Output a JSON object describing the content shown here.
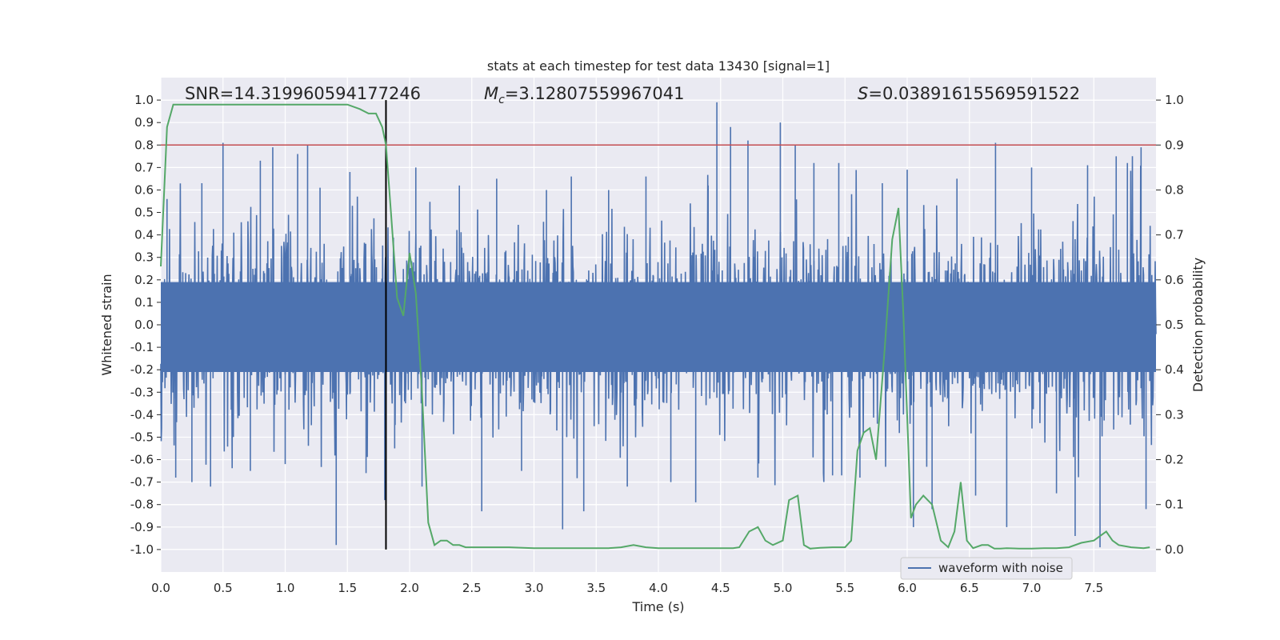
{
  "chart_data": {
    "type": "line",
    "title": "stats at each timestep for test data 13430 [signal=1]",
    "xlabel": "Time (s)",
    "ylabel": "Whitened strain",
    "ylabel_right": "Detection probability",
    "xlim": [
      0.0,
      8.0
    ],
    "ylim": [
      -1.1,
      1.1
    ],
    "ylim_right": [
      -0.05,
      1.05
    ],
    "x_ticks": [
      "0.0",
      "0.5",
      "1.0",
      "1.5",
      "2.0",
      "2.5",
      "3.0",
      "3.5",
      "4.0",
      "4.5",
      "5.0",
      "5.5",
      "6.0",
      "6.5",
      "7.0",
      "7.5"
    ],
    "y_ticks": [
      "1.0",
      "0.9",
      "0.8",
      "0.7",
      "0.6",
      "0.5",
      "0.4",
      "0.3",
      "0.2",
      "0.1",
      "0.0",
      "-0.1",
      "-0.2",
      "-0.3",
      "-0.4",
      "-0.5",
      "-0.6",
      "-0.7",
      "-0.8",
      "-0.9",
      "-1.0"
    ],
    "y_ticks_right": [
      "1.0",
      "0.9",
      "0.8",
      "0.7",
      "0.6",
      "0.5",
      "0.4",
      "0.3",
      "0.2",
      "0.1",
      "0.0"
    ],
    "grid": true,
    "legend_position": "lower-right",
    "annotations": {
      "snr": "SNR=14.319960594177246",
      "mc": "=3.12807559967041",
      "s": "=0.03891615569591522",
      "mc_symbol": "M",
      "mc_sub": "c",
      "s_symbol": "S"
    },
    "series": [
      {
        "name": "waveform with noise",
        "color": "#4c72b0",
        "typical_amplitude": 0.22,
        "spikes": [
          {
            "x": 0.05,
            "y": 0.56
          },
          {
            "x": 0.12,
            "y": -0.68
          },
          {
            "x": 0.25,
            "y": -0.7
          },
          {
            "x": 0.33,
            "y": 0.63
          },
          {
            "x": 0.4,
            "y": -0.72
          },
          {
            "x": 0.5,
            "y": 0.81
          },
          {
            "x": 0.72,
            "y": -0.65
          },
          {
            "x": 0.8,
            "y": 0.73
          },
          {
            "x": 0.9,
            "y": 0.79
          },
          {
            "x": 1.0,
            "y": -0.62
          },
          {
            "x": 1.1,
            "y": 0.76
          },
          {
            "x": 1.18,
            "y": 0.8
          },
          {
            "x": 1.28,
            "y": 0.61
          },
          {
            "x": 1.41,
            "y": -0.98
          },
          {
            "x": 1.52,
            "y": 0.68
          },
          {
            "x": 1.65,
            "y": -0.66
          },
          {
            "x": 1.8,
            "y": -0.78
          },
          {
            "x": 1.88,
            "y": -0.55
          },
          {
            "x": 2.05,
            "y": 0.7
          },
          {
            "x": 2.1,
            "y": -0.72
          },
          {
            "x": 2.4,
            "y": 0.62
          },
          {
            "x": 2.58,
            "y": -0.83
          },
          {
            "x": 2.7,
            "y": 0.65
          },
          {
            "x": 2.9,
            "y": -0.65
          },
          {
            "x": 3.1,
            "y": 0.6
          },
          {
            "x": 3.23,
            "y": -0.91
          },
          {
            "x": 3.3,
            "y": 0.66
          },
          {
            "x": 3.4,
            "y": -0.83
          },
          {
            "x": 3.6,
            "y": 0.6
          },
          {
            "x": 3.75,
            "y": -0.72
          },
          {
            "x": 3.9,
            "y": 0.66
          },
          {
            "x": 4.1,
            "y": -0.7
          },
          {
            "x": 4.3,
            "y": -0.79
          },
          {
            "x": 4.4,
            "y": 0.62
          },
          {
            "x": 4.47,
            "y": 0.99
          },
          {
            "x": 4.58,
            "y": 0.88
          },
          {
            "x": 4.72,
            "y": 0.82
          },
          {
            "x": 4.8,
            "y": -0.68
          },
          {
            "x": 4.98,
            "y": 0.9
          },
          {
            "x": 5.1,
            "y": 0.8
          },
          {
            "x": 5.25,
            "y": 0.72
          },
          {
            "x": 5.4,
            "y": -0.67
          },
          {
            "x": 5.45,
            "y": 0.72
          },
          {
            "x": 5.62,
            "y": -0.68
          },
          {
            "x": 5.8,
            "y": 0.63
          },
          {
            "x": 6.0,
            "y": 0.69
          },
          {
            "x": 6.05,
            "y": -0.9
          },
          {
            "x": 6.2,
            "y": -0.82
          },
          {
            "x": 6.4,
            "y": 0.65
          },
          {
            "x": 6.55,
            "y": -0.76
          },
          {
            "x": 6.71,
            "y": 0.81
          },
          {
            "x": 6.8,
            "y": -0.9
          },
          {
            "x": 7.0,
            "y": 0.7
          },
          {
            "x": 7.2,
            "y": -0.75
          },
          {
            "x": 7.35,
            "y": -0.94
          },
          {
            "x": 7.45,
            "y": 0.71
          },
          {
            "x": 7.55,
            "y": -0.99
          },
          {
            "x": 7.68,
            "y": 0.75
          },
          {
            "x": 7.77,
            "y": 0.72
          },
          {
            "x": 7.88,
            "y": 0.79
          },
          {
            "x": 7.92,
            "y": -0.82
          }
        ]
      },
      {
        "color": "#55a868",
        "axis": "right",
        "x": [
          0.0,
          0.05,
          0.1,
          0.2,
          0.4,
          0.6,
          0.8,
          1.0,
          1.2,
          1.4,
          1.5,
          1.6,
          1.67,
          1.73,
          1.78,
          1.81,
          1.85,
          1.9,
          1.95,
          2.0,
          2.05,
          2.1,
          2.15,
          2.2,
          2.25,
          2.3,
          2.35,
          2.4,
          2.45,
          2.5,
          2.6,
          2.7,
          2.8,
          3.0,
          3.2,
          3.4,
          3.6,
          3.7,
          3.8,
          3.9,
          4.0,
          4.2,
          4.4,
          4.6,
          4.65,
          4.73,
          4.8,
          4.86,
          4.92,
          5.0,
          5.05,
          5.12,
          5.17,
          5.22,
          5.3,
          5.4,
          5.5,
          5.55,
          5.6,
          5.65,
          5.7,
          5.75,
          5.82,
          5.88,
          5.93,
          5.97,
          6.03,
          6.07,
          6.13,
          6.2,
          6.27,
          6.33,
          6.38,
          6.43,
          6.48,
          6.53,
          6.6,
          6.65,
          6.7,
          6.75,
          6.8,
          6.9,
          7.0,
          7.1,
          7.2,
          7.3,
          7.4,
          7.5,
          7.55,
          7.6,
          7.65,
          7.7,
          7.8,
          7.9,
          7.95
        ],
        "y": [
          0.63,
          0.94,
          0.99,
          0.99,
          0.99,
          0.99,
          0.99,
          0.99,
          0.99,
          0.99,
          0.99,
          0.98,
          0.97,
          0.97,
          0.94,
          0.9,
          0.75,
          0.56,
          0.52,
          0.66,
          0.57,
          0.35,
          0.06,
          0.01,
          0.02,
          0.02,
          0.01,
          0.01,
          0.005,
          0.005,
          0.005,
          0.005,
          0.005,
          0.003,
          0.003,
          0.003,
          0.003,
          0.005,
          0.01,
          0.005,
          0.003,
          0.003,
          0.003,
          0.003,
          0.005,
          0.04,
          0.05,
          0.02,
          0.01,
          0.02,
          0.11,
          0.12,
          0.01,
          0.002,
          0.004,
          0.005,
          0.005,
          0.02,
          0.22,
          0.26,
          0.27,
          0.2,
          0.45,
          0.69,
          0.76,
          0.52,
          0.07,
          0.1,
          0.12,
          0.1,
          0.02,
          0.005,
          0.04,
          0.15,
          0.02,
          0.003,
          0.01,
          0.01,
          0.002,
          0.002,
          0.003,
          0.002,
          0.002,
          0.003,
          0.003,
          0.005,
          0.015,
          0.02,
          0.03,
          0.04,
          0.02,
          0.01,
          0.005,
          0.003,
          0.005
        ]
      }
    ],
    "threshold_line": {
      "y_right": 0.9,
      "color": "#c44e52"
    },
    "marker_line": {
      "x": 1.81,
      "color": "#000000"
    }
  }
}
